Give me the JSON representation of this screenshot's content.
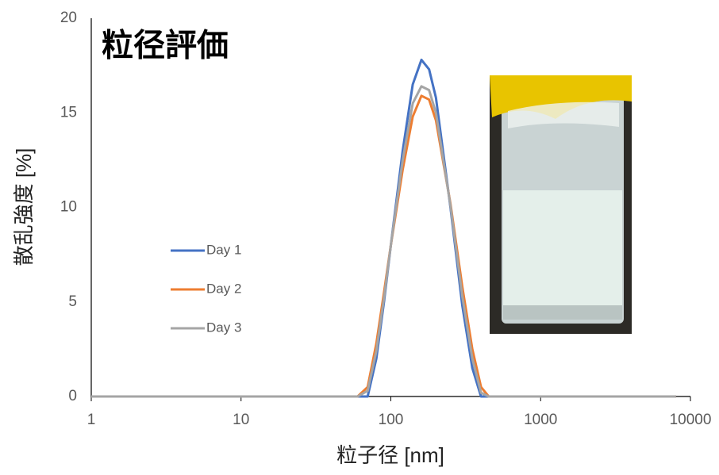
{
  "chart_data": {
    "type": "line",
    "title": "粒径評価",
    "x_label": "粒子径 [nm]",
    "y_label": "散乱強度 [%]",
    "x_scale": "log",
    "x": [
      1,
      60,
      70,
      80,
      90,
      100,
      120,
      140,
      160,
      180,
      200,
      250,
      300,
      350,
      400,
      450,
      8000
    ],
    "series": [
      {
        "name": "Day 1",
        "color": "#4472c4",
        "values": [
          0,
          0,
          0,
          2.0,
          5.0,
          8.0,
          13.0,
          16.5,
          17.8,
          17.3,
          15.8,
          10.0,
          4.8,
          1.5,
          0,
          0,
          0
        ]
      },
      {
        "name": "Day 2",
        "color": "#ed7d31",
        "values": [
          0,
          0,
          0.5,
          2.8,
          5.5,
          8.0,
          12.0,
          14.8,
          15.9,
          15.7,
          14.6,
          10.2,
          5.8,
          2.5,
          0.5,
          0,
          0
        ]
      },
      {
        "name": "Day 3",
        "color": "#a5a5a5",
        "values": [
          0,
          0,
          0.3,
          2.4,
          5.2,
          8.0,
          12.5,
          15.5,
          16.4,
          16.2,
          15.0,
          10.1,
          5.3,
          2.0,
          0.2,
          0,
          0
        ]
      }
    ],
    "xlim": [
      1,
      10000
    ],
    "xticks": [
      1,
      10,
      100,
      1000,
      10000
    ],
    "ylim": [
      0,
      20
    ],
    "yticks": [
      0,
      5,
      10,
      15,
      20
    ]
  }
}
